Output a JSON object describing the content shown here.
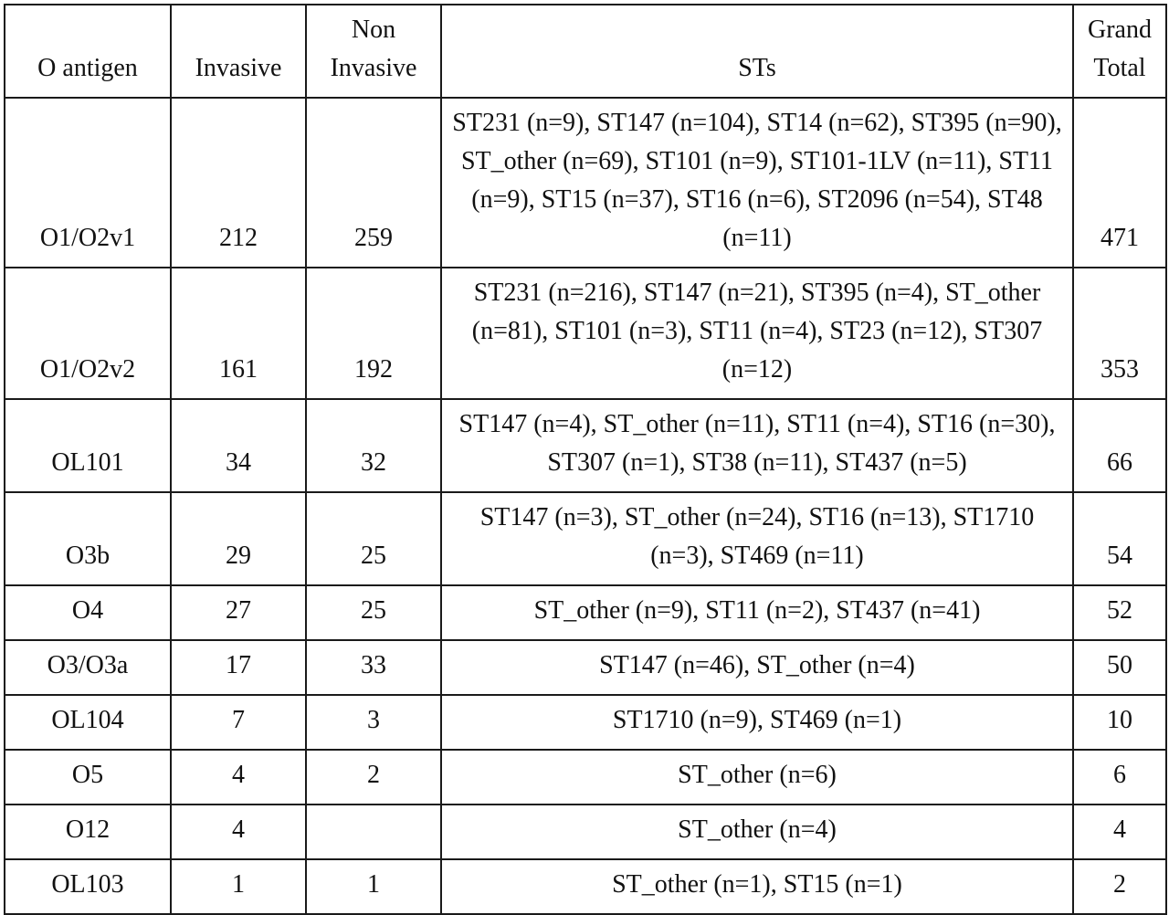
{
  "table": {
    "headers": {
      "o_antigen": "O antigen",
      "invasive": "Invasive",
      "non_invasive": "Non\nInvasive",
      "sts": "STs",
      "grand_total": "Grand\nTotal"
    },
    "rows": [
      {
        "o_antigen": "O1/O2v1",
        "invasive": "212",
        "non_invasive": "259",
        "sts": "ST231 (n=9), ST147 (n=104), ST14 (n=62), ST395 (n=90), ST_other (n=69), ST101 (n=9), ST101-1LV (n=11), ST11 (n=9), ST15 (n=37), ST16 (n=6), ST2096 (n=54), ST48 (n=11)",
        "grand_total": "471"
      },
      {
        "o_antigen": "O1/O2v2",
        "invasive": "161",
        "non_invasive": "192",
        "sts": "ST231 (n=216), ST147 (n=21), ST395 (n=4), ST_other (n=81), ST101 (n=3), ST11 (n=4), ST23 (n=12), ST307 (n=12)",
        "grand_total": "353"
      },
      {
        "o_antigen": "OL101",
        "invasive": "34",
        "non_invasive": "32",
        "sts": "ST147 (n=4), ST_other (n=11), ST11 (n=4), ST16 (n=30), ST307 (n=1), ST38 (n=11), ST437 (n=5)",
        "grand_total": "66"
      },
      {
        "o_antigen": "O3b",
        "invasive": "29",
        "non_invasive": "25",
        "sts": "ST147 (n=3), ST_other (n=24), ST16 (n=13), ST1710 (n=3), ST469 (n=11)",
        "grand_total": "54"
      },
      {
        "o_antigen": "O4",
        "invasive": "27",
        "non_invasive": "25",
        "sts": "ST_other (n=9), ST11 (n=2), ST437 (n=41)",
        "grand_total": "52"
      },
      {
        "o_antigen": "O3/O3a",
        "invasive": "17",
        "non_invasive": "33",
        "sts": "ST147 (n=46), ST_other (n=4)",
        "grand_total": "50"
      },
      {
        "o_antigen": "OL104",
        "invasive": "7",
        "non_invasive": "3",
        "sts": "ST1710 (n=9), ST469 (n=1)",
        "grand_total": "10"
      },
      {
        "o_antigen": "O5",
        "invasive": "4",
        "non_invasive": "2",
        "sts": "ST_other (n=6)",
        "grand_total": "6"
      },
      {
        "o_antigen": "O12",
        "invasive": "4",
        "non_invasive": "",
        "sts": "ST_other (n=4)",
        "grand_total": "4"
      },
      {
        "o_antigen": "OL103",
        "invasive": "1",
        "non_invasive": "1",
        "sts": "ST_other (n=1), ST15 (n=1)",
        "grand_total": "2"
      }
    ]
  }
}
